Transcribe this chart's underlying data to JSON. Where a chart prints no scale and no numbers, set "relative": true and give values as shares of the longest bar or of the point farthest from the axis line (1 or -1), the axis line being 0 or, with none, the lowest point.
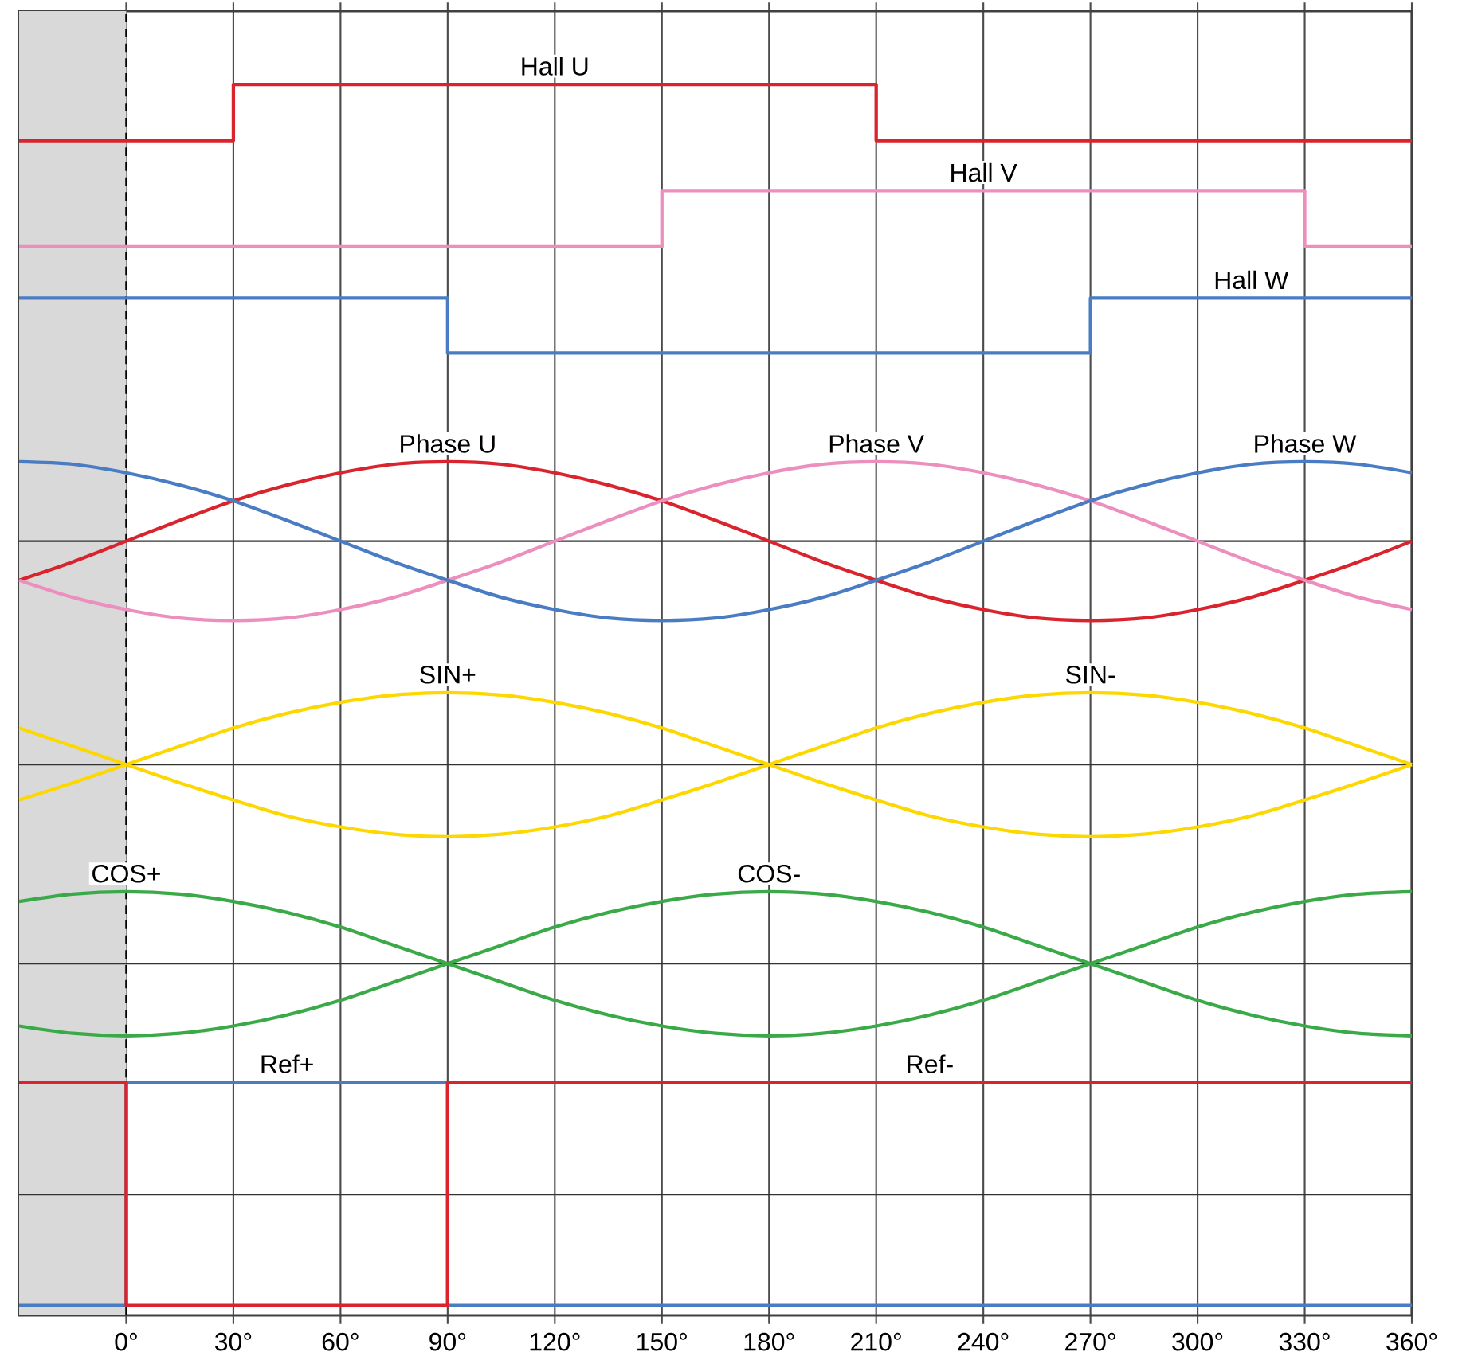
{
  "chart_data": {
    "type": "line",
    "relative": true,
    "grid": "x",
    "xlim": [
      -30,
      360
    ],
    "xticks": [
      {
        "value": 0,
        "label": "0°"
      },
      {
        "value": 30,
        "label": "30°"
      },
      {
        "value": 60,
        "label": "60°"
      },
      {
        "value": 90,
        "label": "90°"
      },
      {
        "value": 120,
        "label": "120°"
      },
      {
        "value": 150,
        "label": "150°"
      },
      {
        "value": 180,
        "label": "180°"
      },
      {
        "value": 210,
        "label": "210°"
      },
      {
        "value": 240,
        "label": "240°"
      },
      {
        "value": 270,
        "label": "270°"
      },
      {
        "value": 300,
        "label": "300°"
      },
      {
        "value": 330,
        "label": "330°"
      },
      {
        "value": 360,
        "label": "360°"
      }
    ],
    "x": [
      -30,
      -15,
      0,
      15,
      30,
      45,
      60,
      75,
      90,
      105,
      120,
      135,
      150,
      165,
      180,
      195,
      210,
      225,
      240,
      255,
      270,
      285,
      300,
      315,
      330,
      345,
      360
    ],
    "series": [
      {
        "name": "Hall U",
        "type": "step",
        "color": "#d9232d",
        "x": [
          -30,
          30,
          210,
          360
        ],
        "values": [
          0.954,
          1,
          0.954,
          0.954
        ]
      },
      {
        "name": "Hall V",
        "type": "step",
        "color": "#ec8fbf",
        "x": [
          -30,
          150,
          330,
          360
        ],
        "values": [
          0.867,
          0.913,
          0.867,
          0.867
        ]
      },
      {
        "name": "Hall W",
        "type": "step",
        "color": "#4a7cc4",
        "x": [
          -30,
          90,
          270,
          360
        ],
        "values": [
          0.825,
          0.78,
          0.825,
          0.825
        ]
      },
      {
        "name": "Phase U",
        "color": "#d9232d",
        "values": [
          0.594,
          0.609,
          0.626,
          0.643,
          0.659,
          0.672,
          0.682,
          0.689,
          0.691,
          0.689,
          0.682,
          0.672,
          0.659,
          0.643,
          0.626,
          0.609,
          0.594,
          0.58,
          0.57,
          0.563,
          0.561,
          0.563,
          0.57,
          0.58,
          0.594,
          0.609,
          0.626
        ]
      },
      {
        "name": "Phase V",
        "color": "#ec8fbf",
        "values": [
          0.594,
          0.58,
          0.57,
          0.563,
          0.561,
          0.563,
          0.57,
          0.58,
          0.594,
          0.609,
          0.626,
          0.643,
          0.659,
          0.672,
          0.682,
          0.689,
          0.691,
          0.689,
          0.682,
          0.672,
          0.659,
          0.643,
          0.626,
          0.609,
          0.594,
          0.58,
          0.57
        ]
      },
      {
        "name": "Phase W",
        "color": "#4a7cc4",
        "values": [
          0.691,
          0.689,
          0.682,
          0.672,
          0.659,
          0.643,
          0.626,
          0.609,
          0.594,
          0.58,
          0.57,
          0.563,
          0.561,
          0.563,
          0.57,
          0.58,
          0.594,
          0.609,
          0.626,
          0.643,
          0.659,
          0.672,
          0.682,
          0.689,
          0.691,
          0.689,
          0.682
        ]
      },
      {
        "name": "SIN+",
        "color": "#fdd800",
        "values": [
          0.414,
          0.428,
          0.443,
          0.458,
          0.473,
          0.485,
          0.494,
          0.5,
          0.502,
          0.5,
          0.494,
          0.485,
          0.473,
          0.458,
          0.443,
          0.428,
          0.414,
          0.401,
          0.392,
          0.386,
          0.384,
          0.386,
          0.392,
          0.401,
          0.414,
          0.428,
          0.443
        ]
      },
      {
        "name": "SIN-",
        "color": "#fdd800",
        "values": [
          0.473,
          0.458,
          0.443,
          0.428,
          0.414,
          0.401,
          0.392,
          0.386,
          0.384,
          0.386,
          0.392,
          0.401,
          0.414,
          0.428,
          0.443,
          0.458,
          0.473,
          0.485,
          0.494,
          0.5,
          0.502,
          0.5,
          0.494,
          0.485,
          0.473,
          0.458,
          0.443
        ]
      },
      {
        "name": "COS+",
        "color": "#3aaa48",
        "values": [
          0.331,
          0.337,
          0.339,
          0.337,
          0.331,
          0.322,
          0.31,
          0.295,
          0.28,
          0.265,
          0.25,
          0.238,
          0.229,
          0.223,
          0.221,
          0.223,
          0.229,
          0.238,
          0.25,
          0.265,
          0.28,
          0.295,
          0.31,
          0.322,
          0.331,
          0.337,
          0.339
        ]
      },
      {
        "name": "COS-",
        "color": "#3aaa48",
        "values": [
          0.229,
          0.223,
          0.221,
          0.223,
          0.229,
          0.238,
          0.25,
          0.265,
          0.28,
          0.295,
          0.31,
          0.322,
          0.331,
          0.337,
          0.339,
          0.337,
          0.331,
          0.322,
          0.31,
          0.295,
          0.28,
          0.265,
          0.25,
          0.238,
          0.229,
          0.223,
          0.221
        ]
      },
      {
        "name": "Ref+",
        "type": "step",
        "color": "#4a7cc4",
        "x": [
          -30,
          0,
          90,
          360
        ],
        "values": [
          0,
          0.183,
          0,
          0
        ]
      },
      {
        "name": "Ref-",
        "type": "step",
        "color": "#d9232d",
        "x": [
          -30,
          0,
          90,
          360
        ],
        "values": [
          0.183,
          0,
          0.183,
          0.183
        ]
      }
    ],
    "bands": [
      {
        "axis": "x",
        "from": -30,
        "to": 0,
        "color": "#d9d9d9"
      }
    ],
    "ref_lines": [
      {
        "axis": "x",
        "value": 0,
        "color": "#000000",
        "line_style": "dashed"
      },
      {
        "axis": "y",
        "value": 0.626,
        "color": "#333333"
      },
      {
        "axis": "y",
        "value": 0.443,
        "color": "#333333"
      },
      {
        "axis": "y",
        "value": 0.28,
        "color": "#333333"
      },
      {
        "axis": "y",
        "value": 0.091,
        "color": "#333333"
      }
    ]
  }
}
